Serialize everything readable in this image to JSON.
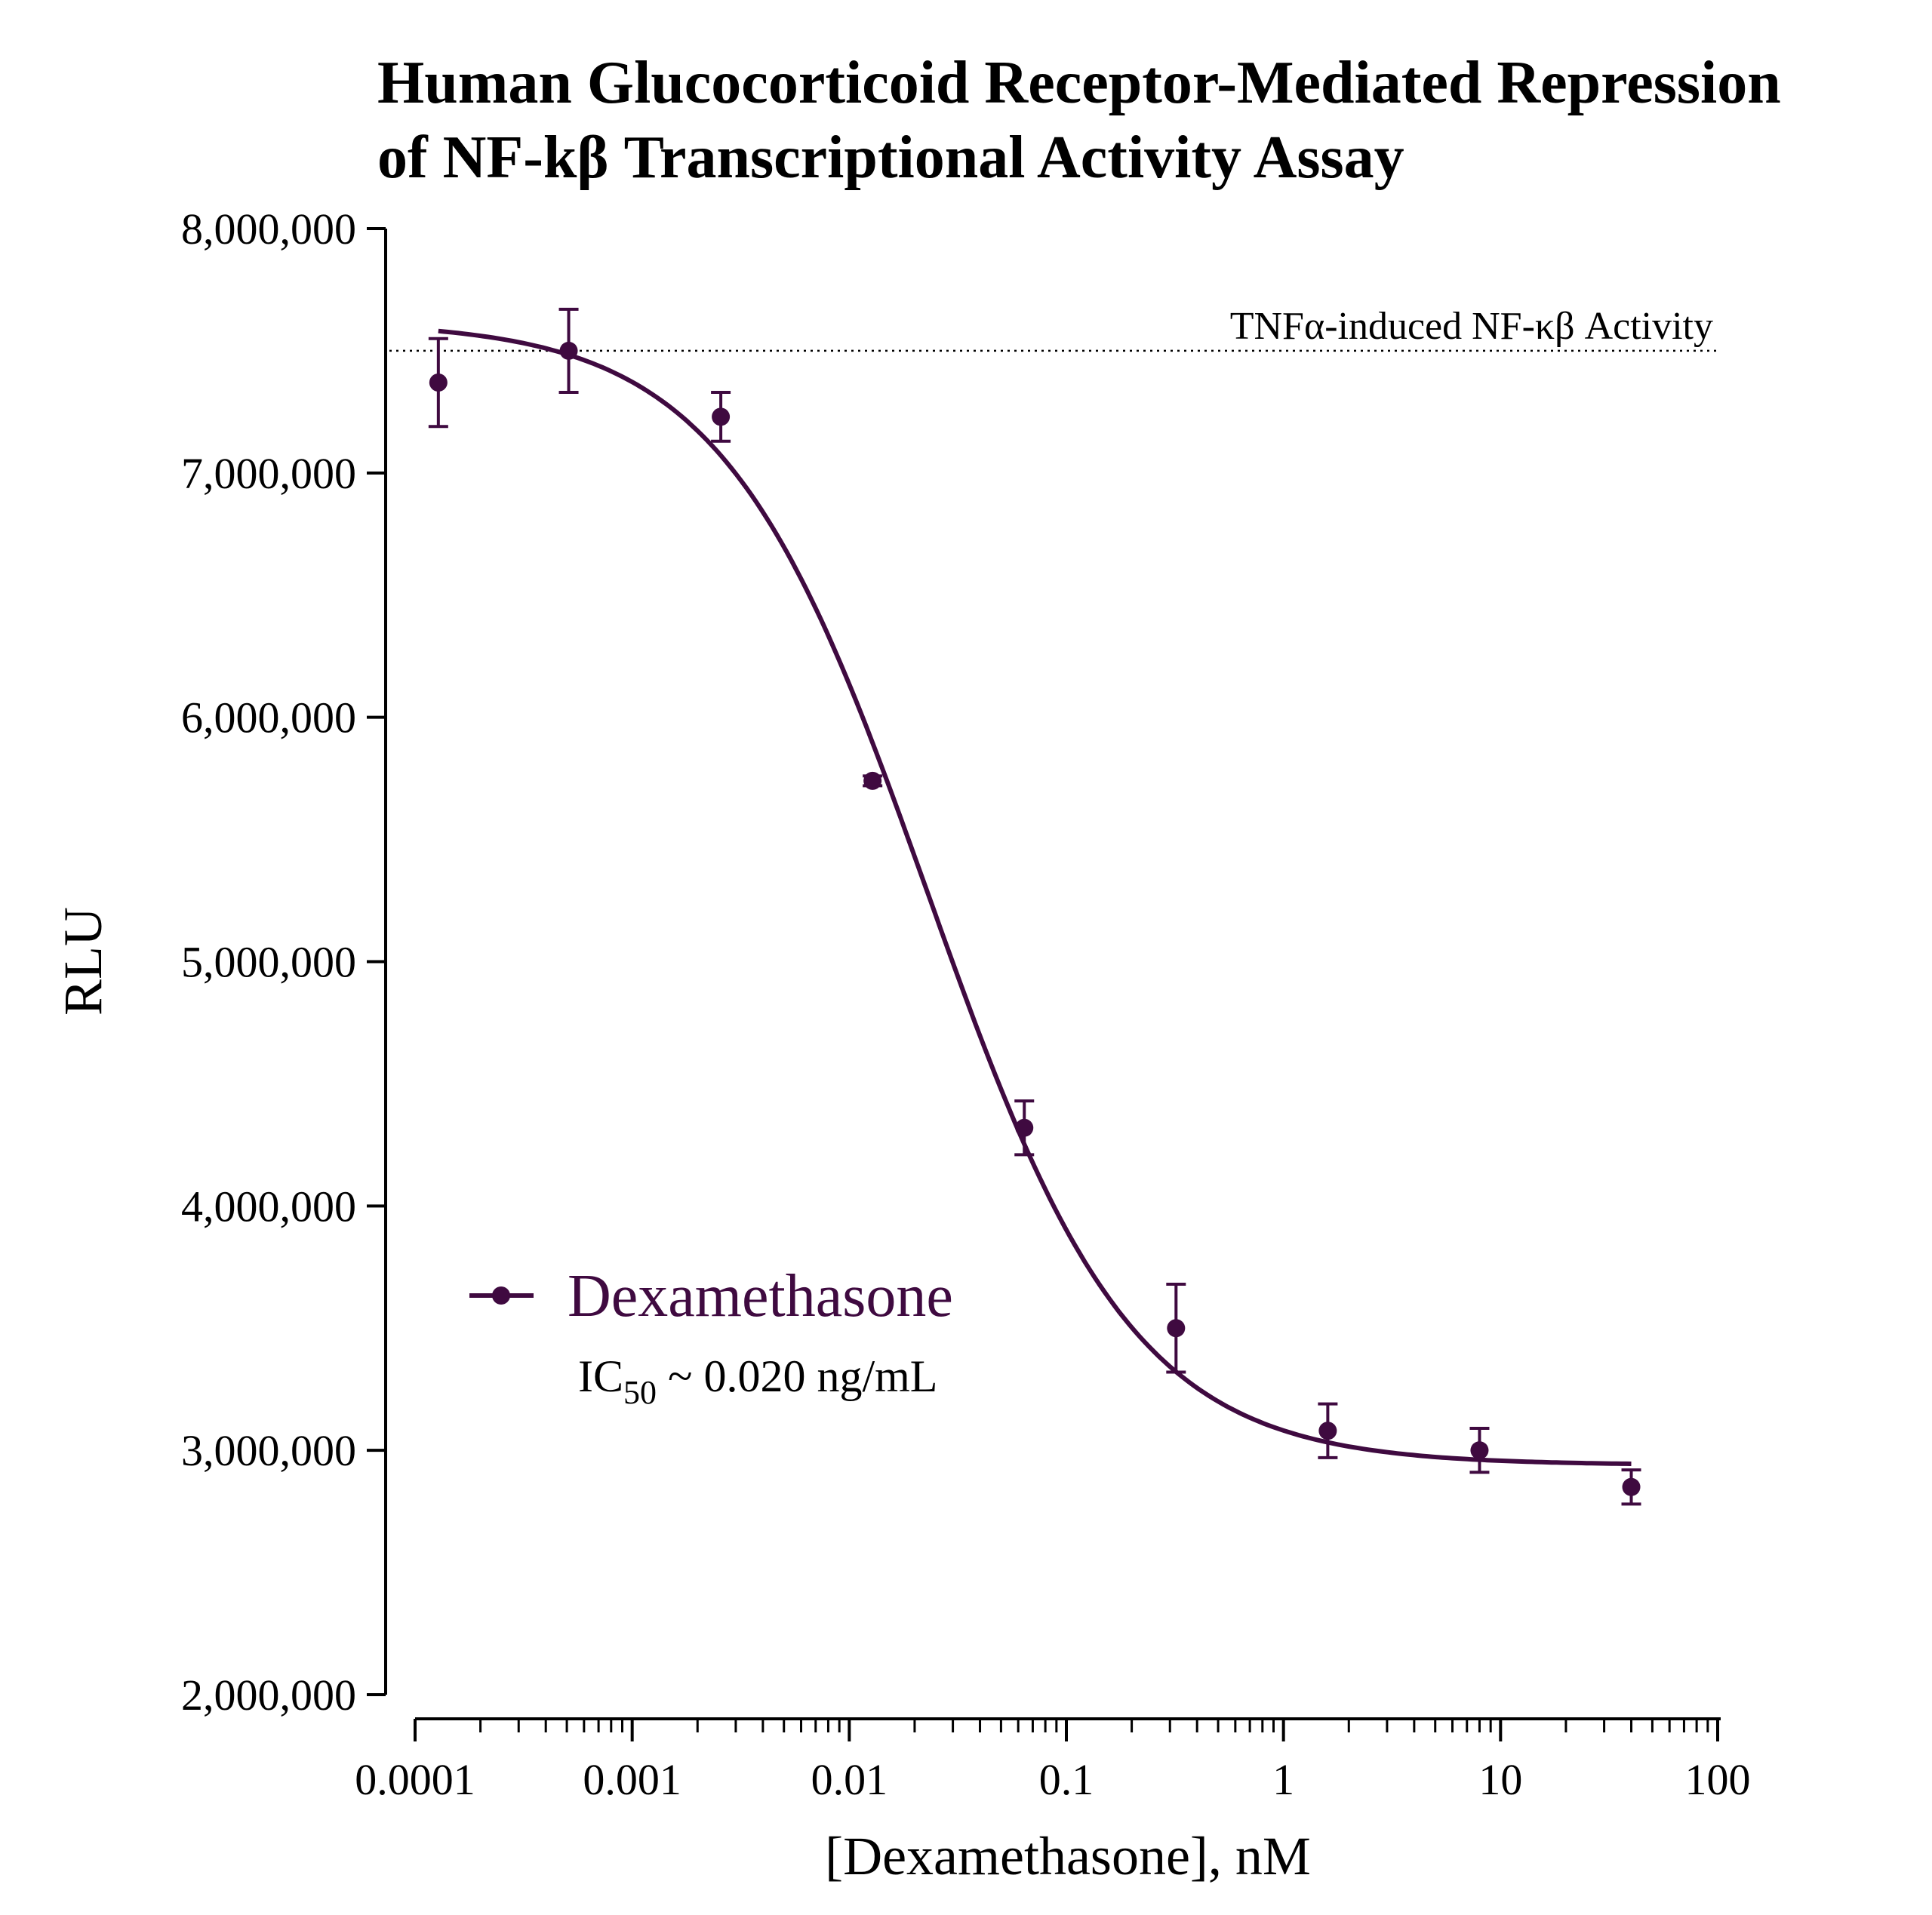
{
  "chart_data": {
    "type": "scatter",
    "title_lines": [
      "Human Glucocorticoid Receptor-Mediated Repression",
      "of NF-kβ Transcriptional Activity Assay"
    ],
    "xlabel": "[Dexamethasone], nM",
    "ylabel": "RLU",
    "x_scale": "log",
    "xlim": [
      0.0001,
      100
    ],
    "ylim": [
      2000000,
      8000000
    ],
    "x_tick_labels": [
      "0.0001",
      "0.001",
      "0.01",
      "0.1",
      "1",
      "10",
      "100"
    ],
    "x_ticks": [
      0.0001,
      0.001,
      0.01,
      0.1,
      1,
      10,
      100
    ],
    "y_tick_labels": [
      "2,000,000",
      "3,000,000",
      "4,000,000",
      "5,000,000",
      "6,000,000",
      "7,000,000",
      "8,000,000"
    ],
    "y_ticks": [
      2000000,
      3000000,
      4000000,
      5000000,
      6000000,
      7000000,
      8000000
    ],
    "grid": false,
    "legend_position": "lower-left",
    "series": [
      {
        "name": "Dexamethasone",
        "color": "#3f0a40",
        "x": [
          0.000128,
          0.00051,
          0.00256,
          0.0128,
          0.064,
          0.32,
          1.6,
          8.0,
          40.0
        ],
        "y": [
          7370000,
          7500000,
          7230000,
          5740000,
          4320000,
          3500000,
          3080000,
          3000000,
          2850000
        ],
        "error": [
          180000,
          170000,
          100000,
          20000,
          110000,
          180000,
          110000,
          90000,
          70000
        ],
        "fit": {
          "model": "4PL",
          "top": 7620000,
          "bottom": 2940000,
          "ic50": 0.023,
          "hill": 0.92,
          "x_range": [
            0.000128,
            40.0
          ]
        }
      }
    ],
    "reference_line": {
      "value": 7500000,
      "label": "TNFα-induced NF-κβ Activity"
    },
    "annotation": {
      "prefix": "IC",
      "subscript": "50",
      "suffix": " ~ 0.020 ng/mL"
    }
  }
}
